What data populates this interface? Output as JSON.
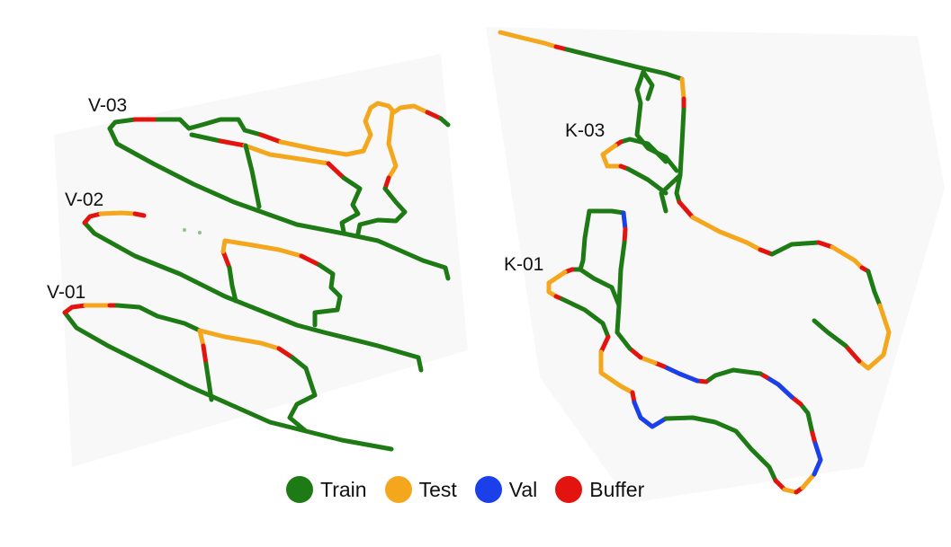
{
  "routes": [
    {
      "id": "v03",
      "label": "V-03"
    },
    {
      "id": "v02",
      "label": "V-02"
    },
    {
      "id": "v01",
      "label": "V-01"
    },
    {
      "id": "k03",
      "label": "K-03"
    },
    {
      "id": "k01",
      "label": "K-01"
    }
  ],
  "legend": [
    {
      "key": "train",
      "label": "Train",
      "color": "#1e7a14"
    },
    {
      "key": "test",
      "label": "Test",
      "color": "#f4a61c"
    },
    {
      "key": "val",
      "label": "Val",
      "color": "#1b3fe8"
    },
    {
      "key": "buffer",
      "label": "Buffer",
      "color": "#e3140f"
    }
  ]
}
